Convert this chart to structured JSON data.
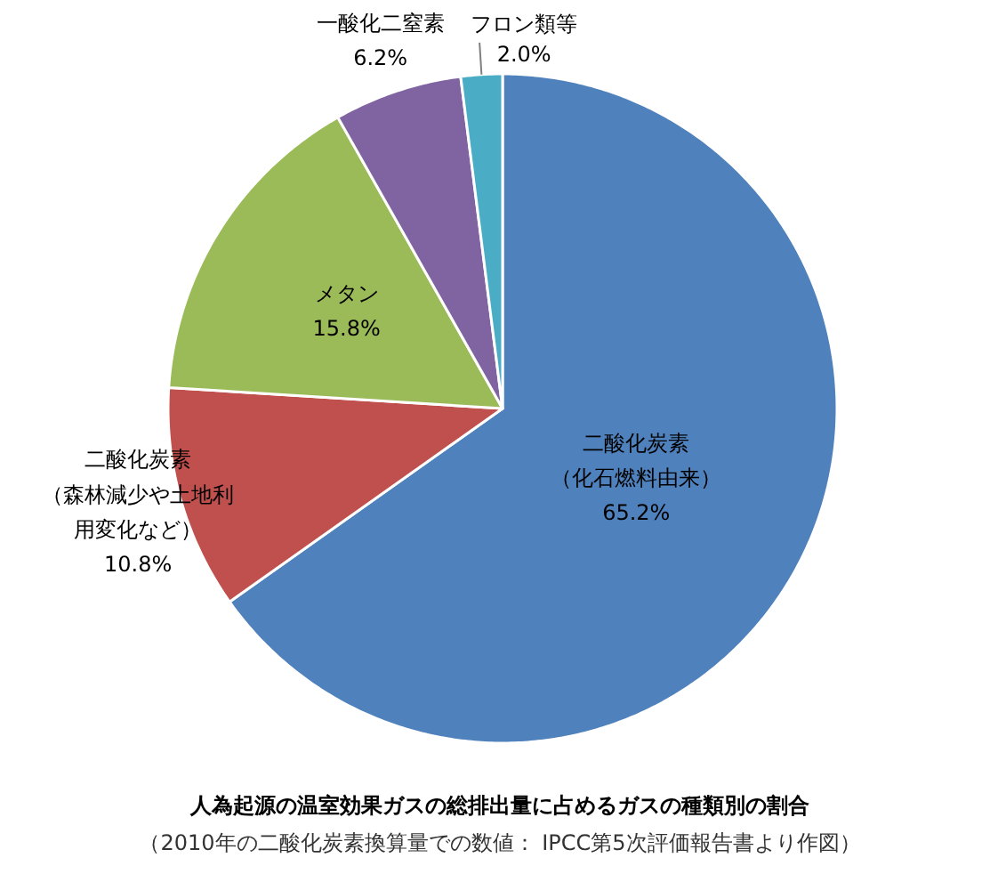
{
  "chart_data": {
    "type": "pie",
    "title": "人為起源の温室効果ガスの総排出量に占めるガスの種類別の割合",
    "subtitle": "（2010年の二酸化炭素換算量での数値： IPCC第5次評価報告書より作図）",
    "categories": [
      "二酸化炭素（化石燃料由来）",
      "二酸化炭素（森林減少や土地利用変化など）",
      "メタン",
      "一酸化二窒素",
      "フロン類等"
    ],
    "values": [
      65.2,
      10.8,
      15.8,
      6.2,
      2.0
    ],
    "value_labels": [
      "65.2%",
      "10.8%",
      "15.8%",
      "6.2%",
      "2.0%"
    ],
    "colors": [
      "#4f81bd",
      "#c0504d",
      "#9bbb59",
      "#8064a2",
      "#4bacc6"
    ]
  }
}
